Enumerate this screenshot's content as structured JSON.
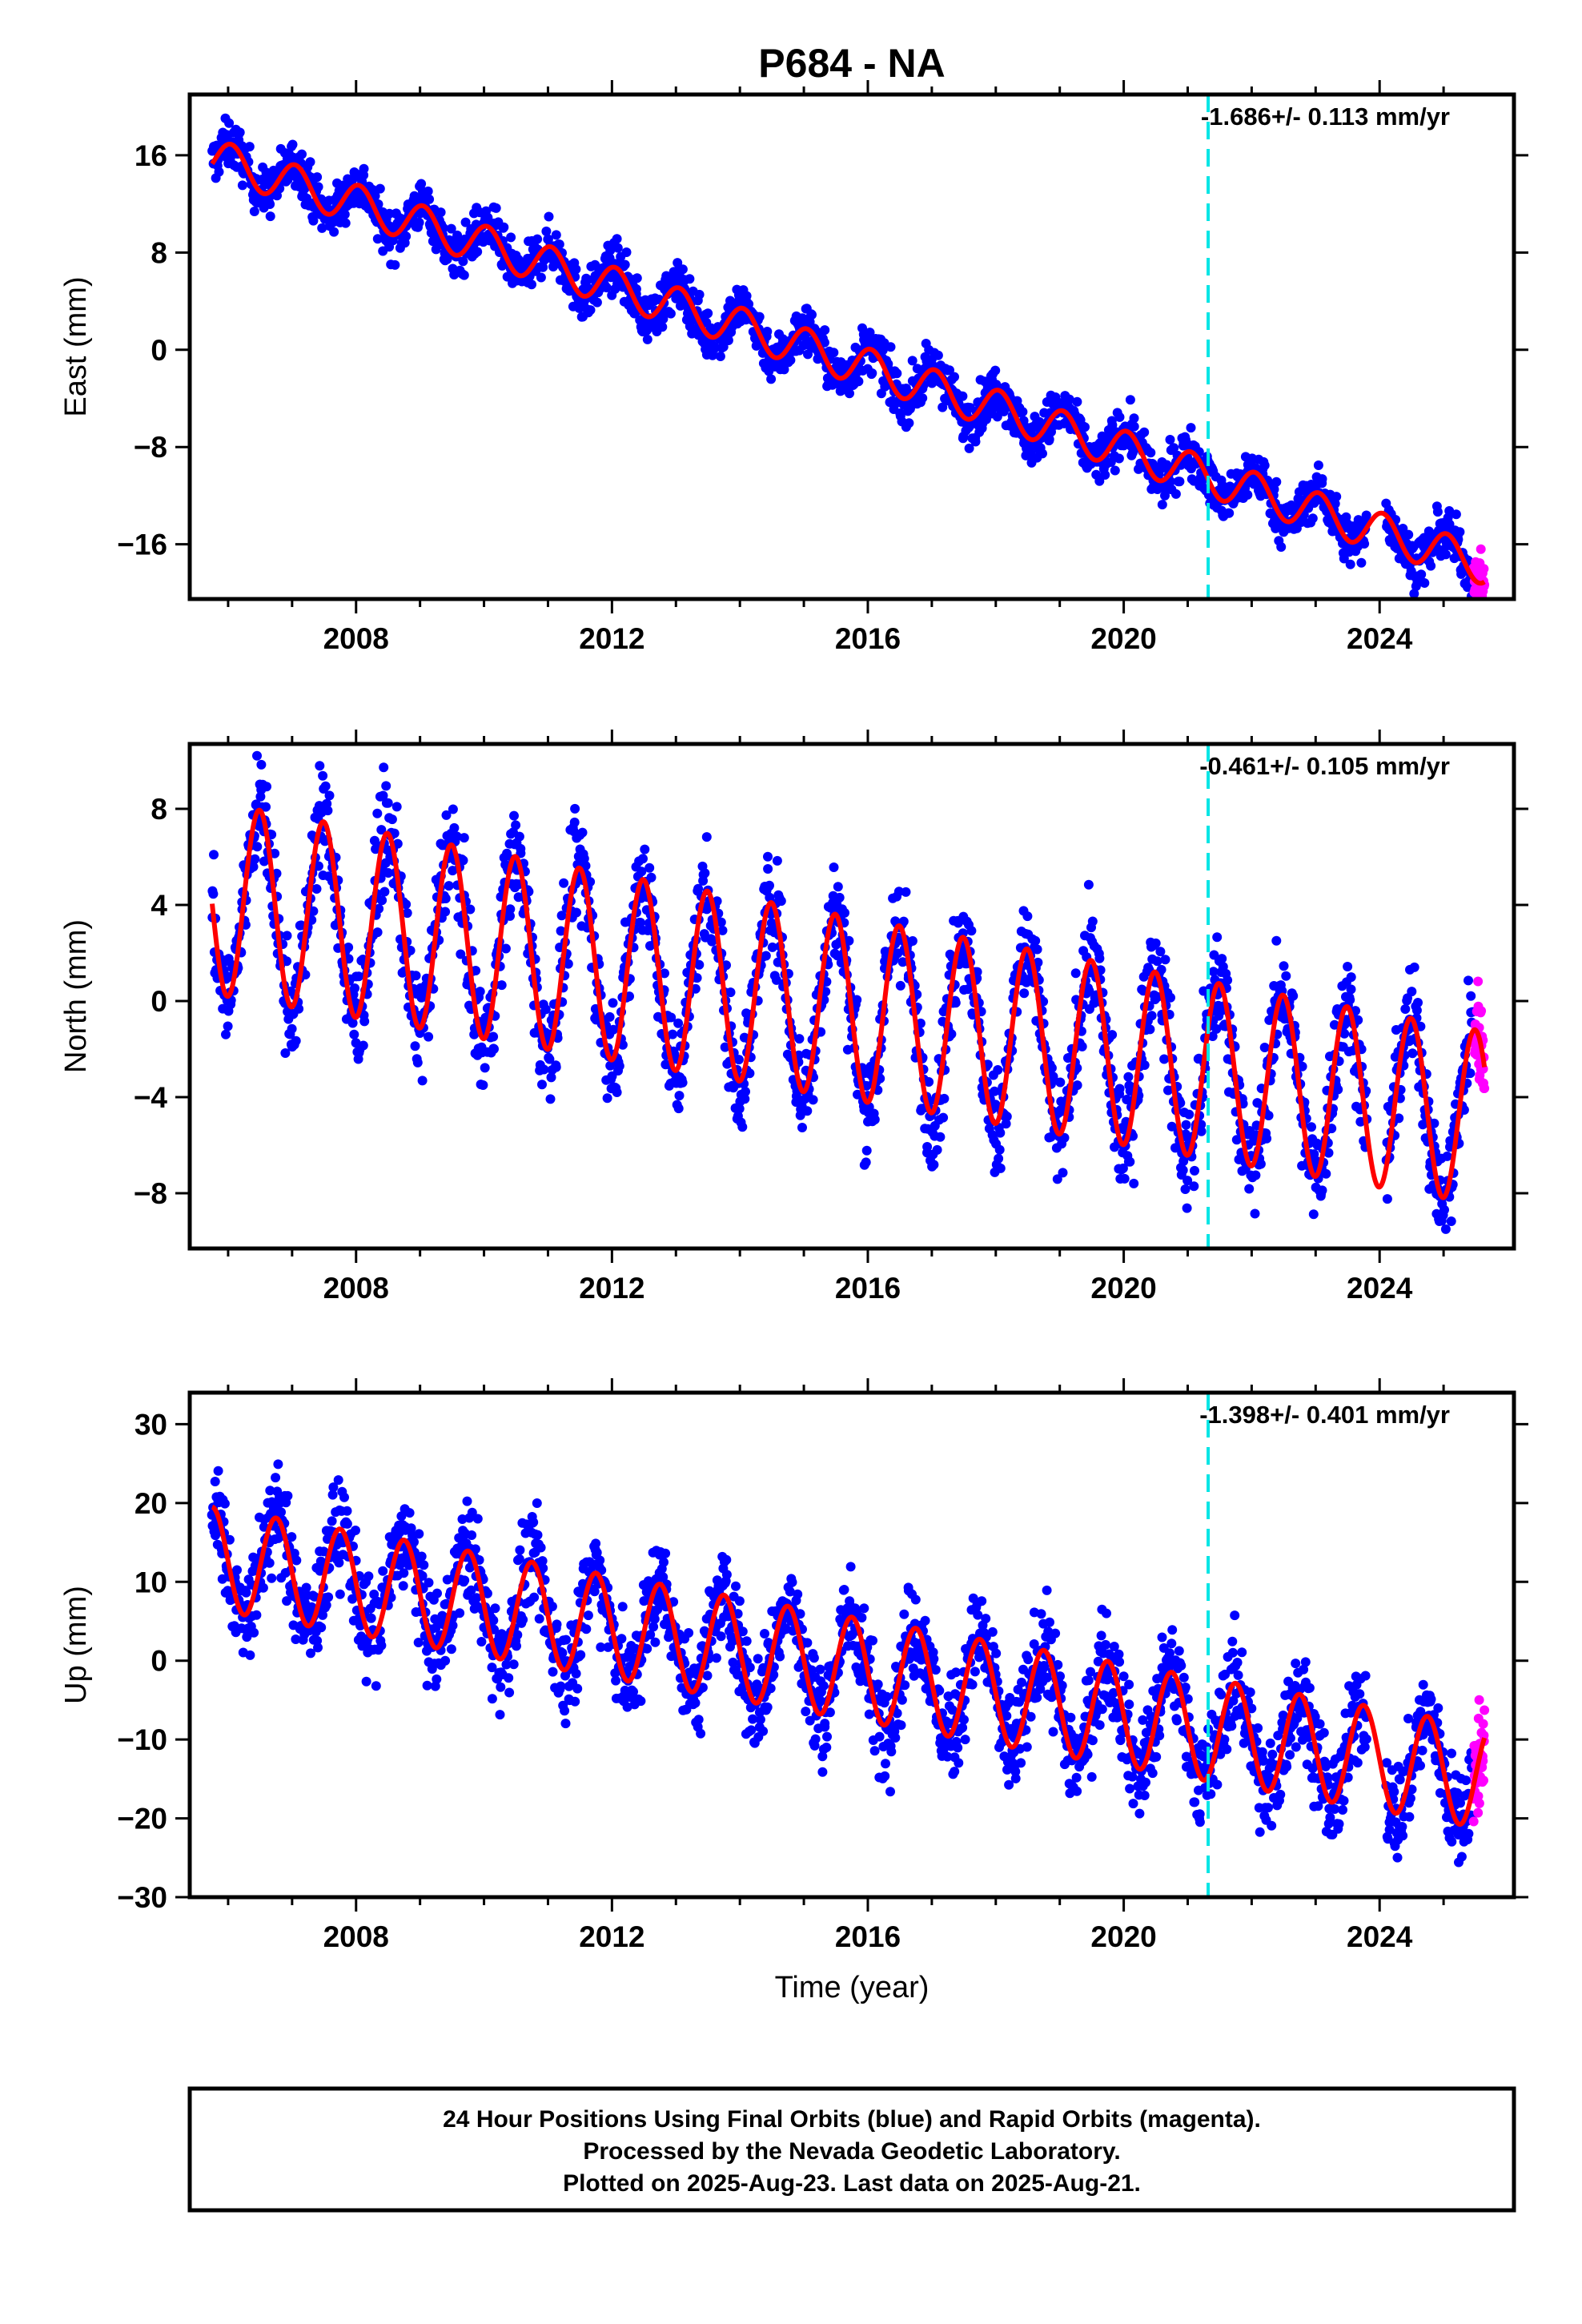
{
  "title": "P684 - NA",
  "xlabel": "Time (year)",
  "footer": {
    "line1": "24 Hour Positions Using Final Orbits (blue) and Rapid Orbits (magenta).",
    "line2": "Processed by the Nevada Geodetic Laboratory.",
    "line3": "Plotted on 2025-Aug-23. Last data on 2025-Aug-21."
  },
  "colors": {
    "final_orbits": "#0000ff",
    "rapid_orbits": "#ff00ff",
    "model_fit": "#ff0000",
    "event_line": "#00e5e5"
  },
  "chart_data": [
    {
      "type": "scatter",
      "name": "east",
      "ylabel": "East (mm)",
      "rate_label": "-1.686+/- 0.113 mm/yr",
      "xlim": [
        2005.4,
        2026.1
      ],
      "ylim": [
        -20.5,
        21
      ],
      "xticks": [
        2008,
        2012,
        2016,
        2020,
        2024
      ],
      "yticks": [
        16,
        8,
        0,
        -8,
        -16
      ],
      "event_line_x": 2021.32,
      "final_start": 2005.75,
      "final_end": 2025.45,
      "rapid_start": 2025.47,
      "rapid_end": 2025.64,
      "gap": [
        2023.8,
        2024.1
      ],
      "trend": {
        "t0": 2005.75,
        "y0": 15.8,
        "rate": -1.686
      },
      "seasonal": {
        "amplitude": 1.6,
        "phase_year": 0.05,
        "amplitude_change_per_year": 0
      },
      "scatter_sd": 1.0
    },
    {
      "type": "scatter",
      "name": "north",
      "ylabel": "North (mm)",
      "rate_label": "-0.461+/- 0.105 mm/yr",
      "xlim": [
        2005.4,
        2026.1
      ],
      "ylim": [
        -10.3,
        10.7
      ],
      "xticks": [
        2008,
        2012,
        2016,
        2020,
        2024
      ],
      "yticks": [
        8,
        4,
        0,
        -4,
        -8
      ],
      "event_line_x": 2021.32,
      "final_start": 2005.75,
      "final_end": 2025.45,
      "rapid_start": 2025.47,
      "rapid_end": 2025.64,
      "gap": [
        2023.8,
        2024.1
      ],
      "trend": {
        "t0": 2005.75,
        "y0": 4.3,
        "rate": -0.461
      },
      "seasonal": {
        "amplitude": 4.0,
        "phase_year": 0.49,
        "amplitude_change_per_year": -0.02
      },
      "scatter_sd": 1.1
    },
    {
      "type": "scatter",
      "name": "up",
      "ylabel": "Up (mm)",
      "rate_label": "-1.398+/- 0.401 mm/yr",
      "xlim": [
        2005.4,
        2026.1
      ],
      "ylim": [
        -30,
        34
      ],
      "xticks": [
        2008,
        2012,
        2016,
        2020,
        2024
      ],
      "yticks": [
        30,
        20,
        10,
        0,
        -10,
        -20,
        -30
      ],
      "event_line_x": 2021.32,
      "final_start": 2005.75,
      "final_end": 2025.45,
      "rapid_start": 2025.47,
      "rapid_end": 2025.64,
      "gap": [
        2023.8,
        2024.1
      ],
      "trend": {
        "t0": 2005.75,
        "y0": 13.0,
        "rate": -1.398
      },
      "seasonal": {
        "amplitude": 6.5,
        "phase_year": 0.75,
        "amplitude_change_per_year": 0
      },
      "scatter_sd": 3.2
    }
  ]
}
